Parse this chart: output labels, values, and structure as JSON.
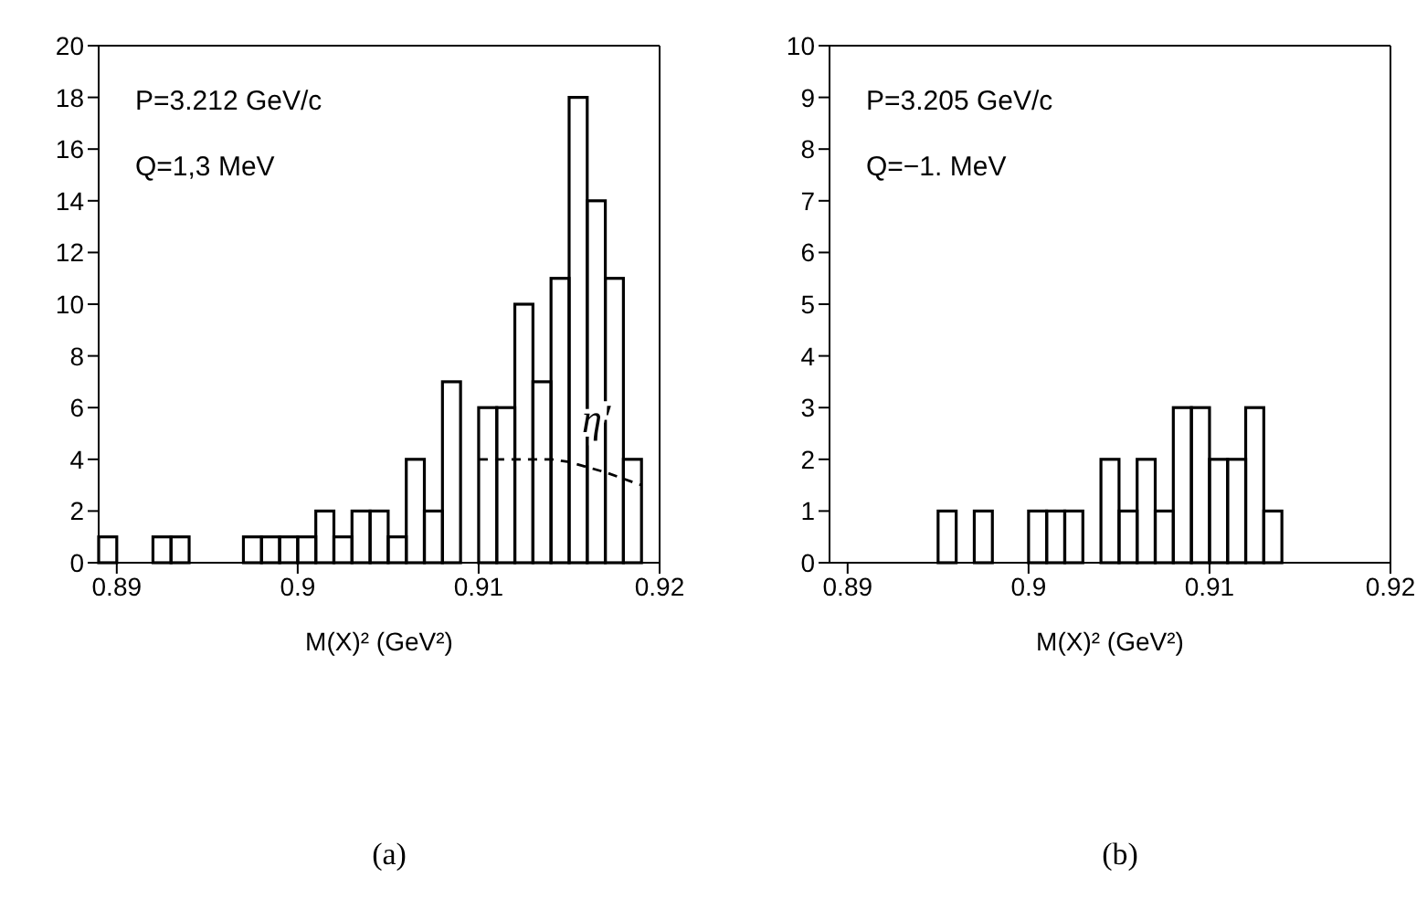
{
  "chart_data": [
    {
      "type": "histogram",
      "title": "(a)",
      "xlabel": "M(X)² (GeV²)",
      "xlim": [
        0.889,
        0.92
      ],
      "xticks": [
        0.89,
        0.9,
        0.91,
        0.92
      ],
      "ylim": [
        0,
        20
      ],
      "yticks": [
        0,
        2,
        4,
        6,
        8,
        10,
        12,
        14,
        16,
        18,
        20
      ],
      "bins": [
        0.889,
        0.89,
        0.891,
        0.892,
        0.893,
        0.894,
        0.895,
        0.896,
        0.897,
        0.898,
        0.899,
        0.9,
        0.901,
        0.902,
        0.903,
        0.904,
        0.905,
        0.906,
        0.907,
        0.908,
        0.909,
        0.91,
        0.911,
        0.912,
        0.913,
        0.914,
        0.915,
        0.916,
        0.917,
        0.918,
        0.919,
        0.92
      ],
      "series": [
        {
          "color": "#000000",
          "values": [
            1,
            0,
            0,
            1,
            1,
            0,
            0,
            0,
            1,
            1,
            1,
            1,
            2,
            1,
            2,
            2,
            1,
            4,
            2,
            7,
            0,
            6,
            6,
            10,
            7,
            11,
            18,
            14,
            11,
            4,
            0
          ]
        },
        {
          "type": "line",
          "color": "#000000",
          "line_style": "dashed",
          "x": [
            0.91,
            0.912,
            0.914,
            0.915,
            0.917,
            0.919
          ],
          "values": [
            4,
            4,
            4,
            3.9,
            3.5,
            3
          ]
        }
      ],
      "annotations": [
        "P=3.212 GeV/c",
        "Q=1,3 MeV",
        {
          "text": "η'",
          "x": 0.9165,
          "y": 5.6
        }
      ]
    },
    {
      "type": "histogram",
      "title": "(b)",
      "xlabel": "M(X)² (GeV²)",
      "xlim": [
        0.889,
        0.92
      ],
      "xticks": [
        0.89,
        0.9,
        0.91,
        0.92
      ],
      "ylim": [
        0,
        10
      ],
      "yticks": [
        0,
        1,
        2,
        3,
        4,
        5,
        6,
        7,
        8,
        9,
        10
      ],
      "bins": [
        0.889,
        0.89,
        0.891,
        0.892,
        0.893,
        0.894,
        0.895,
        0.896,
        0.897,
        0.898,
        0.899,
        0.9,
        0.901,
        0.902,
        0.903,
        0.904,
        0.905,
        0.906,
        0.907,
        0.908,
        0.909,
        0.91,
        0.911,
        0.912,
        0.913,
        0.914,
        0.915,
        0.916,
        0.917,
        0.918,
        0.919,
        0.92
      ],
      "series": [
        {
          "color": "#000000",
          "values": [
            0,
            0,
            0,
            0,
            0,
            0,
            1,
            0,
            1,
            0,
            0,
            1,
            1,
            1,
            0,
            2,
            1,
            2,
            1,
            3,
            3,
            2,
            2,
            3,
            1,
            0,
            0,
            0,
            0,
            0,
            0
          ]
        }
      ],
      "annotations": [
        "P=3.205 GeV/c",
        "Q=−1. MeV"
      ]
    }
  ]
}
